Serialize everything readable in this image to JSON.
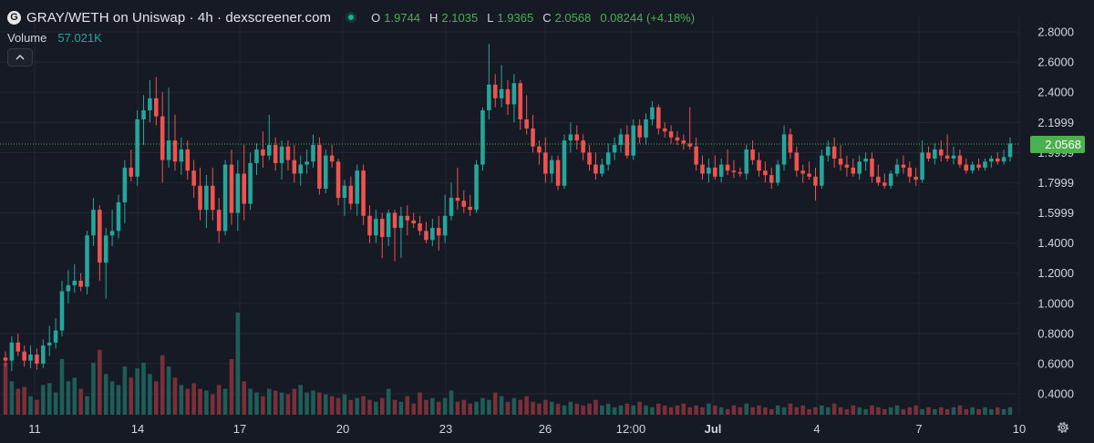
{
  "header": {
    "logo_letter": "G",
    "title": "GRAY/WETH on Uniswap · 4h · dexscreener.com",
    "o_label": "O",
    "o_value": "1.9744",
    "h_label": "H",
    "h_value": "2.1035",
    "l_label": "L",
    "l_value": "1.9365",
    "c_label": "C",
    "c_value": "2.0568",
    "change": "0.08244 (+4.18%)"
  },
  "volume_row": {
    "label": "Volume",
    "value": "57.021K"
  },
  "colors": {
    "up": "#26a69a",
    "down": "#ef5350",
    "background": "#161a25",
    "grid": "#232733",
    "text": "#d1d4dc",
    "price_tag": "#4caf50"
  },
  "icons": {
    "collapse": "chevron-up-icon",
    "settings": "gear-icon",
    "status": "dot-icon"
  },
  "chart_data": {
    "type": "candlestick",
    "title": "GRAY/WETH on Uniswap · 4h · dexscreener.com",
    "ylim": [
      0.3,
      2.85
    ],
    "y_ticks": [
      "2.8000",
      "2.6000",
      "2.4000",
      "2.1999",
      "1.9999",
      "1.7999",
      "1.5999",
      "1.4000",
      "1.2000",
      "1.0000",
      "0.8000",
      "0.6000",
      "0.4000"
    ],
    "x_ticks": [
      "11",
      "14",
      "17",
      "20",
      "23",
      "26",
      "12:00",
      "Jul",
      "4",
      "7",
      "10"
    ],
    "x_ticks_bold": [
      false,
      false,
      false,
      false,
      false,
      false,
      false,
      true,
      false,
      false,
      false
    ],
    "x_range": [
      10.2,
      10.17
    ],
    "x_tick_values": [
      11,
      14,
      17,
      20,
      23,
      26,
      27.5,
      28.5,
      31.5,
      34.5,
      37.5
    ],
    "last_price": "2.0568",
    "last_price_value": 2.0568,
    "grid": true,
    "candles": [
      [
        0.64,
        0.68,
        0.58,
        0.62
      ],
      [
        0.62,
        0.78,
        0.55,
        0.74
      ],
      [
        0.74,
        0.8,
        0.65,
        0.68
      ],
      [
        0.68,
        0.72,
        0.58,
        0.62
      ],
      [
        0.62,
        0.72,
        0.57,
        0.66
      ],
      [
        0.66,
        0.7,
        0.56,
        0.6
      ],
      [
        0.6,
        0.76,
        0.57,
        0.72
      ],
      [
        0.72,
        0.85,
        0.65,
        0.74
      ],
      [
        0.74,
        0.9,
        0.7,
        0.82
      ],
      [
        0.82,
        1.15,
        0.78,
        1.08
      ],
      [
        1.08,
        1.22,
        1.0,
        1.12
      ],
      [
        1.12,
        1.26,
        1.07,
        1.15
      ],
      [
        1.15,
        1.2,
        1.08,
        1.11
      ],
      [
        1.11,
        1.48,
        1.06,
        1.45
      ],
      [
        1.45,
        1.7,
        1.38,
        1.62
      ],
      [
        1.62,
        1.65,
        1.15,
        1.27
      ],
      [
        1.27,
        1.5,
        1.03,
        1.45
      ],
      [
        1.45,
        1.62,
        1.38,
        1.48
      ],
      [
        1.48,
        1.72,
        1.43,
        1.67
      ],
      [
        1.67,
        1.95,
        1.53,
        1.9
      ],
      [
        1.9,
        2.02,
        1.81,
        1.84
      ],
      [
        1.84,
        2.28,
        1.78,
        2.22
      ],
      [
        2.22,
        2.38,
        2.05,
        2.28
      ],
      [
        2.28,
        2.48,
        2.2,
        2.36
      ],
      [
        2.36,
        2.5,
        2.18,
        2.24
      ],
      [
        2.24,
        2.4,
        1.8,
        1.95
      ],
      [
        1.95,
        2.43,
        1.9,
        2.08
      ],
      [
        2.08,
        2.25,
        1.88,
        1.94
      ],
      [
        1.94,
        2.1,
        1.85,
        2.02
      ],
      [
        2.02,
        2.08,
        1.82,
        1.88
      ],
      [
        1.88,
        1.95,
        1.7,
        1.78
      ],
      [
        1.78,
        1.9,
        1.55,
        1.62
      ],
      [
        1.62,
        1.85,
        1.5,
        1.78
      ],
      [
        1.78,
        1.9,
        1.55,
        1.62
      ],
      [
        1.62,
        1.7,
        1.4,
        1.48
      ],
      [
        1.48,
        1.95,
        1.45,
        1.92
      ],
      [
        1.92,
        2.02,
        1.52,
        1.6
      ],
      [
        1.6,
        1.95,
        1.48,
        1.86
      ],
      [
        1.86,
        2.05,
        1.55,
        1.66
      ],
      [
        1.66,
        2.0,
        1.62,
        1.93
      ],
      [
        1.93,
        2.06,
        1.85,
        2.02
      ],
      [
        2.02,
        2.14,
        1.9,
        1.98
      ],
      [
        1.98,
        2.25,
        1.95,
        2.05
      ],
      [
        2.05,
        2.1,
        1.88,
        1.93
      ],
      [
        1.93,
        2.08,
        1.82,
        2.04
      ],
      [
        2.04,
        2.08,
        1.88,
        1.95
      ],
      [
        1.95,
        2.05,
        1.8,
        1.86
      ],
      [
        1.86,
        1.98,
        1.78,
        1.92
      ],
      [
        1.92,
        2.02,
        1.86,
        1.94
      ],
      [
        1.94,
        2.12,
        1.9,
        2.05
      ],
      [
        2.05,
        2.1,
        1.72,
        1.76
      ],
      [
        1.76,
        2.02,
        1.73,
        1.98
      ],
      [
        1.98,
        2.05,
        1.9,
        1.94
      ],
      [
        1.94,
        1.96,
        1.65,
        1.7
      ],
      [
        1.7,
        1.82,
        1.58,
        1.78
      ],
      [
        1.78,
        1.84,
        1.62,
        1.66
      ],
      [
        1.66,
        1.92,
        1.58,
        1.88
      ],
      [
        1.88,
        1.92,
        1.52,
        1.58
      ],
      [
        1.58,
        1.65,
        1.4,
        1.45
      ],
      [
        1.45,
        1.62,
        1.4,
        1.56
      ],
      [
        1.56,
        1.6,
        1.3,
        1.44
      ],
      [
        1.44,
        1.62,
        1.38,
        1.6
      ],
      [
        1.6,
        1.62,
        1.28,
        1.5
      ],
      [
        1.5,
        1.64,
        1.3,
        1.58
      ],
      [
        1.58,
        1.65,
        1.45,
        1.55
      ],
      [
        1.55,
        1.6,
        1.5,
        1.53
      ],
      [
        1.53,
        1.58,
        1.45,
        1.48
      ],
      [
        1.48,
        1.54,
        1.4,
        1.42
      ],
      [
        1.42,
        1.56,
        1.38,
        1.5
      ],
      [
        1.5,
        1.58,
        1.35,
        1.45
      ],
      [
        1.45,
        1.72,
        1.4,
        1.58
      ],
      [
        1.58,
        1.8,
        1.55,
        1.7
      ],
      [
        1.7,
        1.9,
        1.62,
        1.68
      ],
      [
        1.68,
        1.75,
        1.6,
        1.64
      ],
      [
        1.64,
        1.72,
        1.58,
        1.62
      ],
      [
        1.62,
        1.95,
        1.6,
        1.92
      ],
      [
        1.92,
        2.3,
        1.88,
        2.28
      ],
      [
        2.28,
        2.72,
        2.22,
        2.45
      ],
      [
        2.45,
        2.52,
        2.3,
        2.36
      ],
      [
        2.36,
        2.58,
        2.3,
        2.42
      ],
      [
        2.42,
        2.48,
        2.25,
        2.32
      ],
      [
        2.32,
        2.52,
        2.2,
        2.46
      ],
      [
        2.46,
        2.48,
        2.15,
        2.22
      ],
      [
        2.22,
        2.38,
        2.12,
        2.16
      ],
      [
        2.16,
        2.25,
        2.0,
        2.04
      ],
      [
        2.04,
        2.08,
        1.92,
        2.0
      ],
      [
        2.0,
        2.1,
        1.8,
        1.86
      ],
      [
        1.86,
        1.98,
        1.8,
        1.95
      ],
      [
        1.95,
        1.98,
        1.75,
        1.78
      ],
      [
        1.78,
        2.12,
        1.76,
        2.08
      ],
      [
        2.08,
        2.2,
        2.0,
        2.12
      ],
      [
        2.12,
        2.18,
        2.02,
        2.08
      ],
      [
        2.08,
        2.12,
        1.95,
        2.0
      ],
      [
        2.0,
        2.05,
        1.88,
        1.92
      ],
      [
        1.92,
        2.0,
        1.82,
        1.86
      ],
      [
        1.86,
        1.96,
        1.84,
        1.92
      ],
      [
        1.92,
        2.06,
        1.88,
        2.0
      ],
      [
        2.0,
        2.1,
        1.95,
        2.05
      ],
      [
        2.05,
        2.16,
        2.0,
        2.12
      ],
      [
        2.12,
        2.18,
        1.96,
        1.98
      ],
      [
        1.98,
        2.22,
        1.95,
        2.18
      ],
      [
        2.18,
        2.22,
        2.06,
        2.1
      ],
      [
        2.1,
        2.26,
        2.05,
        2.22
      ],
      [
        2.22,
        2.34,
        2.18,
        2.3
      ],
      [
        2.3,
        2.32,
        2.12,
        2.16
      ],
      [
        2.16,
        2.2,
        2.1,
        2.14
      ],
      [
        2.14,
        2.18,
        2.06,
        2.1
      ],
      [
        2.1,
        2.14,
        2.05,
        2.08
      ],
      [
        2.08,
        2.12,
        2.02,
        2.06
      ],
      [
        2.06,
        2.3,
        2.02,
        2.04
      ],
      [
        2.04,
        2.1,
        1.88,
        1.92
      ],
      [
        1.92,
        1.98,
        1.82,
        1.86
      ],
      [
        1.86,
        1.96,
        1.8,
        1.9
      ],
      [
        1.9,
        1.98,
        1.82,
        1.84
      ],
      [
        1.84,
        1.96,
        1.8,
        1.92
      ],
      [
        1.92,
        2.02,
        1.85,
        1.88
      ],
      [
        1.88,
        1.95,
        1.83,
        1.87
      ],
      [
        1.87,
        1.9,
        1.84,
        1.86
      ],
      [
        1.86,
        2.05,
        1.82,
        2.02
      ],
      [
        2.02,
        2.08,
        1.92,
        1.95
      ],
      [
        1.95,
        2.0,
        1.84,
        1.88
      ],
      [
        1.88,
        1.94,
        1.8,
        1.85
      ],
      [
        1.85,
        1.9,
        1.76,
        1.8
      ],
      [
        1.8,
        1.95,
        1.78,
        1.92
      ],
      [
        1.92,
        2.18,
        1.88,
        2.12
      ],
      [
        2.12,
        2.16,
        1.96,
        2.0
      ],
      [
        2.0,
        2.04,
        1.84,
        1.88
      ],
      [
        1.88,
        1.92,
        1.8,
        1.86
      ],
      [
        1.86,
        1.94,
        1.82,
        1.84
      ],
      [
        1.84,
        1.9,
        1.68,
        1.78
      ],
      [
        1.78,
        2.02,
        1.76,
        1.98
      ],
      [
        1.98,
        2.08,
        1.94,
        2.04
      ],
      [
        2.04,
        2.1,
        1.9,
        1.96
      ],
      [
        1.96,
        2.05,
        1.88,
        1.92
      ],
      [
        1.92,
        1.98,
        1.84,
        1.9
      ],
      [
        1.9,
        1.96,
        1.84,
        1.86
      ],
      [
        1.86,
        1.98,
        1.82,
        1.94
      ],
      [
        1.94,
        2.0,
        1.88,
        1.96
      ],
      [
        1.96,
        2.0,
        1.8,
        1.84
      ],
      [
        1.84,
        1.92,
        1.78,
        1.8
      ],
      [
        1.8,
        1.86,
        1.76,
        1.78
      ],
      [
        1.78,
        1.88,
        1.76,
        1.86
      ],
      [
        1.86,
        1.96,
        1.84,
        1.92
      ],
      [
        1.92,
        1.98,
        1.86,
        1.9
      ],
      [
        1.9,
        1.94,
        1.8,
        1.84
      ],
      [
        1.84,
        1.9,
        1.78,
        1.82
      ],
      [
        1.82,
        2.08,
        1.8,
        2.0
      ],
      [
        2.0,
        2.04,
        1.94,
        1.96
      ],
      [
        1.96,
        2.06,
        1.92,
        2.02
      ],
      [
        2.02,
        2.08,
        1.94,
        1.98
      ],
      [
        1.98,
        2.12,
        1.94,
        1.96
      ],
      [
        1.96,
        2.04,
        1.92,
        1.98
      ],
      [
        1.98,
        2.02,
        1.9,
        1.92
      ],
      [
        1.92,
        1.96,
        1.86,
        1.88
      ],
      [
        1.88,
        1.94,
        1.86,
        1.92
      ],
      [
        1.92,
        1.96,
        1.88,
        1.9
      ],
      [
        1.9,
        1.96,
        1.88,
        1.94
      ],
      [
        1.94,
        1.98,
        1.9,
        1.96
      ],
      [
        1.96,
        2.0,
        1.92,
        1.94
      ],
      [
        1.94,
        2.02,
        1.92,
        1.97
      ],
      [
        1.97,
        2.1,
        1.94,
        2.06
      ]
    ],
    "volume": [
      0.28,
      0.18,
      0.14,
      0.15,
      0.1,
      0.08,
      0.16,
      0.17,
      0.12,
      0.3,
      0.18,
      0.2,
      0.14,
      0.1,
      0.28,
      0.35,
      0.22,
      0.18,
      0.16,
      0.26,
      0.2,
      0.25,
      0.28,
      0.22,
      0.18,
      0.32,
      0.26,
      0.2,
      0.16,
      0.14,
      0.17,
      0.14,
      0.13,
      0.11,
      0.16,
      0.14,
      0.3,
      0.55,
      0.18,
      0.14,
      0.12,
      0.1,
      0.14,
      0.13,
      0.12,
      0.11,
      0.14,
      0.16,
      0.12,
      0.13,
      0.12,
      0.11,
      0.1,
      0.09,
      0.11,
      0.08,
      0.09,
      0.1,
      0.08,
      0.07,
      0.09,
      0.14,
      0.08,
      0.07,
      0.1,
      0.06,
      0.12,
      0.08,
      0.09,
      0.07,
      0.09,
      0.13,
      0.07,
      0.08,
      0.06,
      0.07,
      0.09,
      0.08,
      0.12,
      0.1,
      0.07,
      0.09,
      0.08,
      0.1,
      0.07,
      0.06,
      0.08,
      0.07,
      0.06,
      0.05,
      0.07,
      0.06,
      0.05,
      0.06,
      0.08,
      0.05,
      0.06,
      0.04,
      0.05,
      0.06,
      0.05,
      0.07,
      0.05,
      0.04,
      0.06,
      0.05,
      0.04,
      0.05,
      0.06,
      0.04,
      0.05,
      0.04,
      0.06,
      0.05,
      0.04,
      0.03,
      0.05,
      0.04,
      0.06,
      0.04,
      0.05,
      0.04,
      0.03,
      0.05,
      0.04,
      0.06,
      0.04,
      0.05,
      0.03,
      0.04,
      0.05,
      0.04,
      0.06,
      0.04,
      0.03,
      0.05,
      0.04,
      0.03,
      0.05,
      0.04,
      0.03,
      0.04,
      0.05,
      0.03,
      0.04,
      0.05,
      0.03,
      0.04,
      0.03,
      0.04,
      0.03,
      0.04,
      0.05,
      0.03,
      0.04,
      0.03,
      0.04,
      0.03,
      0.04,
      0.03,
      0.04
    ],
    "volume_max": 0.55
  }
}
